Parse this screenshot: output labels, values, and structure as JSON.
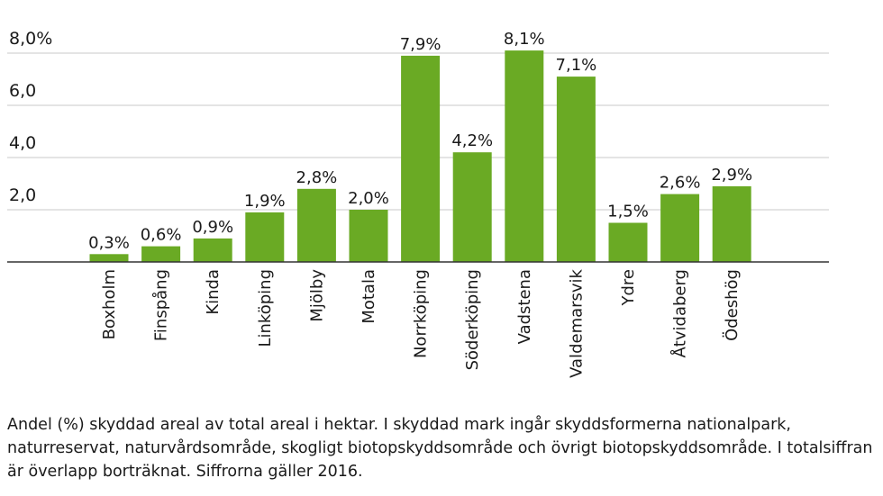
{
  "chart_data": {
    "type": "bar",
    "categories": [
      "Boxholm",
      "Finspång",
      "Kinda",
      "Linköping",
      "Mjölby",
      "Motala",
      "Norrköping",
      "Söderköping",
      "Vadstena",
      "Valdemarsvik",
      "Ydre",
      "Åtvidaberg",
      "Ödeshög"
    ],
    "values": [
      0.3,
      0.6,
      0.9,
      1.9,
      2.8,
      2.0,
      7.9,
      4.2,
      8.1,
      7.1,
      1.5,
      2.6,
      2.9
    ],
    "value_labels": [
      "0,3%",
      "0,6%",
      "0,9%",
      "1,9%",
      "2,8%",
      "2,0%",
      "7,9%",
      "4,2%",
      "8,1%",
      "7,1%",
      "1,5%",
      "2,6%",
      "2,9%"
    ],
    "y_ticks": [
      {
        "value": 2,
        "label": "2,0"
      },
      {
        "value": 4,
        "label": "4,0"
      },
      {
        "value": 6,
        "label": "6,0"
      },
      {
        "value": 8,
        "label": "8,0%"
      }
    ],
    "ylim": [
      0,
      8.3
    ],
    "grid": true,
    "bar_color": "#6aaa24",
    "grid_color": "#c8c8c8",
    "axis_color": "#333333"
  },
  "caption": "Andel (%) skyddad areal av total areal i hektar. I skyddad mark ingår skyddsformerna nationalpark, naturreservat, naturvårdsområde, skogligt biotopskyddsområde och övrigt biotopskyddsområde. I totalsiffran är överlapp borträknat. Siffrorna gäller 2016."
}
